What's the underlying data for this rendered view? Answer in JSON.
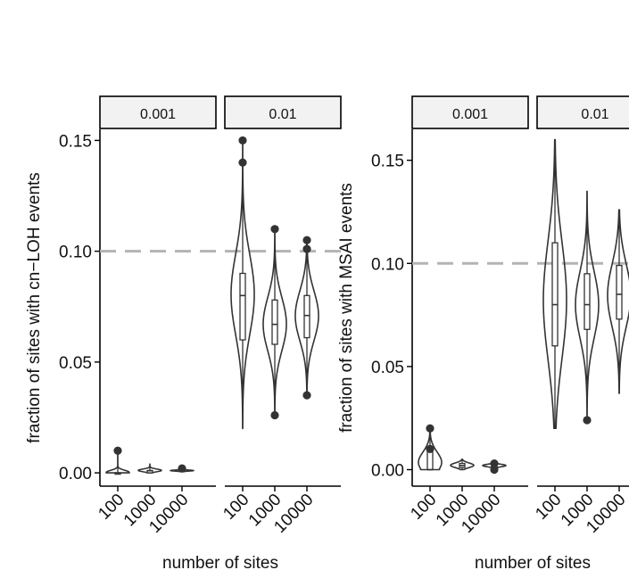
{
  "chart_data": [
    {
      "type": "violin",
      "ylabel": "fraction of sites with cn−LOH events",
      "xlabel": "number of sites",
      "ylim": [
        -0.006,
        0.155
      ],
      "yticks": [
        0.0,
        0.05,
        0.1,
        0.15
      ],
      "ytick_labels": [
        "0.00",
        "0.05",
        "0.10",
        "0.15"
      ],
      "reference_line": 0.1,
      "facets": [
        {
          "label": "0.001",
          "groups": [
            {
              "x": "100",
              "min": 0.0,
              "q1": 0.0,
              "median": 0.0,
              "q3": 0.0,
              "max": 0.01,
              "outliers": [
                0.01
              ]
            },
            {
              "x": "1000",
              "min": 0.0,
              "q1": 0.0,
              "median": 0.001,
              "q3": 0.001,
              "max": 0.004,
              "outliers": []
            },
            {
              "x": "10000",
              "min": 0.0005,
              "q1": 0.0008,
              "median": 0.001,
              "q3": 0.0012,
              "max": 0.002,
              "outliers": [
                0.002
              ]
            }
          ]
        },
        {
          "label": "0.01",
          "groups": [
            {
              "x": "100",
              "min": 0.02,
              "q1": 0.06,
              "median": 0.08,
              "q3": 0.09,
              "max": 0.15,
              "outliers": [
                0.14,
                0.15
              ]
            },
            {
              "x": "1000",
              "min": 0.026,
              "q1": 0.058,
              "median": 0.067,
              "q3": 0.078,
              "max": 0.11,
              "outliers": [
                0.026,
                0.11
              ]
            },
            {
              "x": "10000",
              "min": 0.035,
              "q1": 0.061,
              "median": 0.071,
              "q3": 0.08,
              "max": 0.105,
              "outliers": [
                0.035,
                0.101,
                0.105
              ]
            }
          ]
        }
      ]
    },
    {
      "type": "violin",
      "ylabel": "fraction of sites with MSAI events",
      "xlabel": "number of sites",
      "ylim": [
        -0.008,
        0.165
      ],
      "yticks": [
        0.0,
        0.05,
        0.1,
        0.15
      ],
      "ytick_labels": [
        "0.00",
        "0.05",
        "0.10",
        "0.15"
      ],
      "reference_line": 0.1,
      "facets": [
        {
          "label": "0.001",
          "groups": [
            {
              "x": "100",
              "min": 0.0,
              "q1": 0.0,
              "median": 0.0,
              "q3": 0.01,
              "max": 0.02,
              "outliers": [
                0.01,
                0.02
              ]
            },
            {
              "x": "1000",
              "min": 0.0,
              "q1": 0.001,
              "median": 0.002,
              "q3": 0.003,
              "max": 0.005,
              "outliers": []
            },
            {
              "x": "10000",
              "min": 0.0,
              "q1": 0.0015,
              "median": 0.002,
              "q3": 0.0025,
              "max": 0.004,
              "outliers": [
                0.0,
                0.003
              ]
            }
          ]
        },
        {
          "label": "0.01",
          "groups": [
            {
              "x": "100",
              "min": 0.02,
              "q1": 0.06,
              "median": 0.08,
              "q3": 0.11,
              "max": 0.16,
              "outliers": []
            },
            {
              "x": "1000",
              "min": 0.024,
              "q1": 0.068,
              "median": 0.08,
              "q3": 0.095,
              "max": 0.135,
              "outliers": [
                0.024
              ]
            },
            {
              "x": "10000",
              "min": 0.037,
              "q1": 0.073,
              "median": 0.085,
              "q3": 0.099,
              "max": 0.126,
              "outliers": []
            }
          ]
        }
      ]
    }
  ],
  "colors": {
    "outline": "#333333",
    "reference_line": "#b3b3b3",
    "strip_fill": "#f2f2f2",
    "axis": "#000000"
  }
}
